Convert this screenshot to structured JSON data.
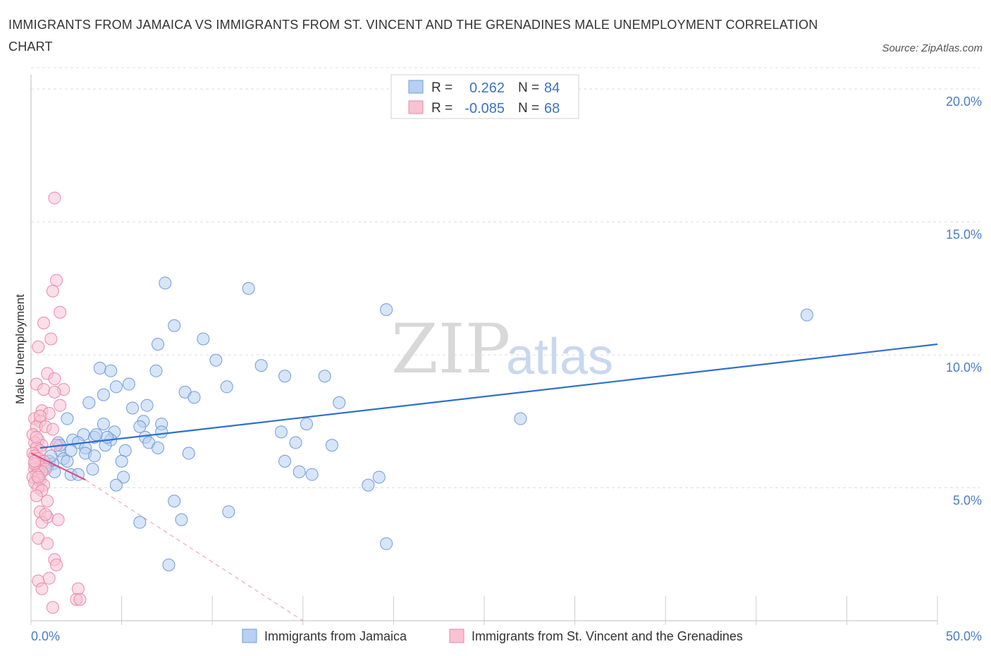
{
  "header": {
    "title": "IMMIGRANTS FROM JAMAICA VS IMMIGRANTS FROM ST. VINCENT AND THE GRENADINES MALE UNEMPLOYMENT CORRELATION CHART",
    "source": "Source: ZipAtlas.com"
  },
  "watermark": {
    "zip": "ZIP",
    "atlas": "atlas"
  },
  "legend": {
    "series1": {
      "r_label": "R =",
      "r_value": "0.262",
      "n_label": "N =",
      "n_value": "84"
    },
    "series2": {
      "r_label": "R =",
      "r_value": "-0.085",
      "n_label": "N =",
      "n_value": "68"
    }
  },
  "colors": {
    "jamaica_fill": "#b7d0f3",
    "jamaica_stroke": "#6f9bd9",
    "jamaica_line": "#2f6fd0",
    "stvincent_fill": "#f7c3d3",
    "stvincent_stroke": "#e88aa8",
    "stvincent_line": "#e0507f",
    "grid": "#dddddd",
    "axis_text": "#4a7cc7"
  },
  "chart_data": {
    "type": "scatter",
    "title": "IMMIGRANTS FROM JAMAICA VS IMMIGRANTS FROM ST. VINCENT AND THE GRENADINES MALE UNEMPLOYMENT CORRELATION CHART",
    "xlabel": "",
    "ylabel": "Male Unemployment",
    "xlim": [
      0,
      50
    ],
    "ylim": [
      0,
      20.8
    ],
    "x_tick_labels": [
      "0.0%",
      "50.0%"
    ],
    "y_ticks": [
      5,
      10,
      15,
      20
    ],
    "y_tick_labels": [
      "5.0%",
      "10.0%",
      "15.0%",
      "20.0%"
    ],
    "grid": true,
    "series": [
      {
        "name": "Immigrants from Jamaica",
        "r": 0.262,
        "n": 84,
        "trend": {
          "x0": 0.5,
          "y0": 6.5,
          "x1": 50,
          "y1": 10.4
        },
        "points": [
          [
            7.4,
            12.7
          ],
          [
            12.0,
            12.5
          ],
          [
            19.6,
            11.7
          ],
          [
            42.8,
            11.5
          ],
          [
            7.9,
            11.1
          ],
          [
            9.5,
            10.6
          ],
          [
            7.0,
            10.4
          ],
          [
            10.2,
            9.8
          ],
          [
            12.7,
            9.6
          ],
          [
            3.8,
            9.5
          ],
          [
            4.4,
            9.4
          ],
          [
            6.9,
            9.4
          ],
          [
            14.0,
            9.2
          ],
          [
            16.2,
            9.2
          ],
          [
            4.7,
            8.8
          ],
          [
            5.4,
            8.9
          ],
          [
            8.5,
            8.6
          ],
          [
            9.0,
            8.4
          ],
          [
            4.0,
            8.5
          ],
          [
            3.2,
            8.2
          ],
          [
            6.4,
            8.1
          ],
          [
            10.8,
            8.8
          ],
          [
            17.0,
            8.2
          ],
          [
            5.6,
            8.0
          ],
          [
            27.0,
            7.6
          ],
          [
            2.0,
            7.6
          ],
          [
            6.2,
            7.5
          ],
          [
            15.2,
            7.4
          ],
          [
            4.0,
            7.4
          ],
          [
            7.2,
            7.4
          ],
          [
            6.0,
            7.3
          ],
          [
            4.6,
            7.1
          ],
          [
            13.8,
            7.1
          ],
          [
            7.2,
            7.1
          ],
          [
            2.9,
            7.0
          ],
          [
            3.5,
            6.9
          ],
          [
            4.4,
            6.8
          ],
          [
            6.3,
            6.9
          ],
          [
            2.3,
            6.8
          ],
          [
            2.6,
            6.7
          ],
          [
            1.5,
            6.7
          ],
          [
            4.1,
            6.6
          ],
          [
            6.5,
            6.7
          ],
          [
            14.6,
            6.7
          ],
          [
            16.6,
            6.6
          ],
          [
            3.0,
            6.5
          ],
          [
            5.2,
            6.4
          ],
          [
            7.0,
            6.5
          ],
          [
            1.6,
            6.4
          ],
          [
            3.0,
            6.3
          ],
          [
            3.5,
            6.2
          ],
          [
            8.7,
            6.3
          ],
          [
            1.8,
            6.1
          ],
          [
            2.0,
            6.0
          ],
          [
            5.0,
            6.0
          ],
          [
            1.0,
            6.0
          ],
          [
            1.2,
            5.9
          ],
          [
            0.7,
            5.9
          ],
          [
            0.9,
            5.8
          ],
          [
            14.0,
            6.0
          ],
          [
            3.4,
            5.7
          ],
          [
            1.3,
            5.6
          ],
          [
            0.6,
            5.6
          ],
          [
            2.2,
            5.5
          ],
          [
            14.8,
            5.6
          ],
          [
            15.5,
            5.5
          ],
          [
            19.2,
            5.4
          ],
          [
            5.1,
            5.4
          ],
          [
            0.4,
            5.3
          ],
          [
            4.7,
            5.1
          ],
          [
            18.6,
            5.1
          ],
          [
            7.9,
            4.5
          ],
          [
            10.9,
            4.1
          ],
          [
            8.3,
            3.8
          ],
          [
            6.0,
            3.7
          ],
          [
            19.6,
            2.9
          ],
          [
            7.6,
            2.1
          ],
          [
            1.1,
            6.2
          ],
          [
            2.6,
            5.5
          ],
          [
            0.8,
            5.8
          ],
          [
            1.6,
            6.6
          ],
          [
            2.2,
            6.4
          ],
          [
            4.2,
            6.9
          ],
          [
            3.6,
            7.0
          ]
        ]
      },
      {
        "name": "Immigrants from St. Vincent and the Grenadines",
        "r": -0.085,
        "n": 68,
        "trend": {
          "x0": 0,
          "y0": 6.3,
          "x1": 3.0,
          "y1": 5.3,
          "dash_x1": 15.0,
          "dash_y1": 0
        },
        "points": [
          [
            1.3,
            15.9
          ],
          [
            1.4,
            12.8
          ],
          [
            1.2,
            12.4
          ],
          [
            1.6,
            11.6
          ],
          [
            0.7,
            11.2
          ],
          [
            1.1,
            10.6
          ],
          [
            0.4,
            10.3
          ],
          [
            0.9,
            9.3
          ],
          [
            1.3,
            9.1
          ],
          [
            0.3,
            8.9
          ],
          [
            0.7,
            8.7
          ],
          [
            1.8,
            8.7
          ],
          [
            1.3,
            8.6
          ],
          [
            1.6,
            8.1
          ],
          [
            0.6,
            7.9
          ],
          [
            1.0,
            7.8
          ],
          [
            0.2,
            7.6
          ],
          [
            0.5,
            7.5
          ],
          [
            0.3,
            7.3
          ],
          [
            0.8,
            7.3
          ],
          [
            1.2,
            7.2
          ],
          [
            0.1,
            7.0
          ],
          [
            0.4,
            6.8
          ],
          [
            0.2,
            6.7
          ],
          [
            0.6,
            6.6
          ],
          [
            1.4,
            6.6
          ],
          [
            0.3,
            6.5
          ],
          [
            0.5,
            6.4
          ],
          [
            0.1,
            6.3
          ],
          [
            0.2,
            6.2
          ],
          [
            0.4,
            6.1
          ],
          [
            0.7,
            6.0
          ],
          [
            0.3,
            5.9
          ],
          [
            0.5,
            5.8
          ],
          [
            0.2,
            5.7
          ],
          [
            0.8,
            5.7
          ],
          [
            0.4,
            5.6
          ],
          [
            0.6,
            5.6
          ],
          [
            0.3,
            5.5
          ],
          [
            0.1,
            5.4
          ],
          [
            0.5,
            5.3
          ],
          [
            0.2,
            5.2
          ],
          [
            0.7,
            5.1
          ],
          [
            0.4,
            5.0
          ],
          [
            0.6,
            4.9
          ],
          [
            0.3,
            4.7
          ],
          [
            0.9,
            4.5
          ],
          [
            0.5,
            4.1
          ],
          [
            0.9,
            3.9
          ],
          [
            1.5,
            3.8
          ],
          [
            0.6,
            3.7
          ],
          [
            0.8,
            4.0
          ],
          [
            0.4,
            3.1
          ],
          [
            0.9,
            2.9
          ],
          [
            1.3,
            2.3
          ],
          [
            1.4,
            2.1
          ],
          [
            0.4,
            1.5
          ],
          [
            1.0,
            1.6
          ],
          [
            0.6,
            1.2
          ],
          [
            2.6,
            1.2
          ],
          [
            2.5,
            0.8
          ],
          [
            2.7,
            0.8
          ],
          [
            1.2,
            0.5
          ],
          [
            0.2,
            5.9
          ],
          [
            0.3,
            6.9
          ],
          [
            0.5,
            7.7
          ],
          [
            0.4,
            5.4
          ],
          [
            0.2,
            6.0
          ]
        ]
      }
    ]
  },
  "bottom_legend": {
    "series1": "Immigrants from Jamaica",
    "series2": "Immigrants from St. Vincent and the Grenadines"
  }
}
